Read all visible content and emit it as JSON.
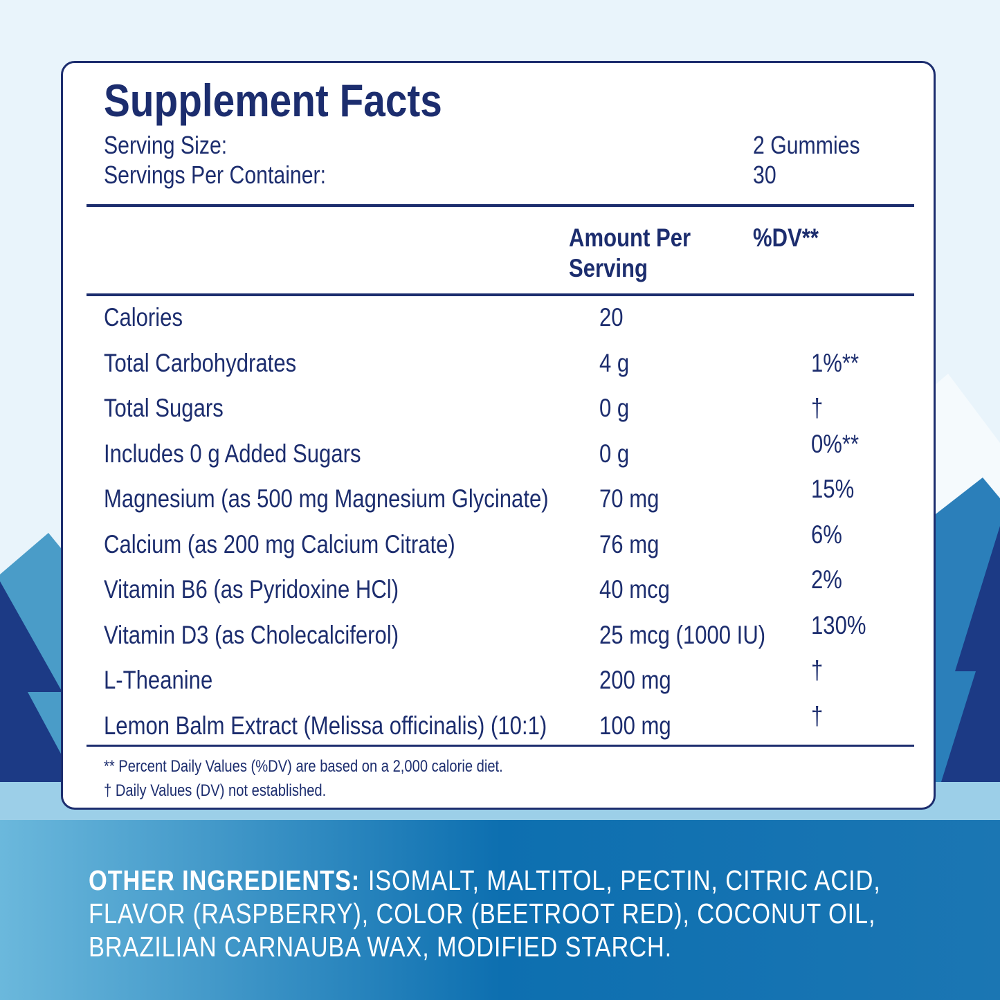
{
  "header": {
    "title": "Supplement Facts",
    "serving": [
      [
        "Serving Size:",
        "2 Gummies"
      ],
      [
        "Servings Per Container:",
        "30"
      ]
    ]
  },
  "table": {
    "columns": [
      "Amount Per Serving",
      "%DV**"
    ],
    "rows": [
      [
        "Calories",
        "20"
      ],
      [
        "Total Carbohydrates",
        "4 g",
        "1%**"
      ],
      [
        "Total Sugars",
        "0 g",
        "†"
      ],
      [
        "Includes 0 g Added Sugars",
        "0 g",
        "0%**"
      ],
      [
        "Magnesium (as 500 mg Magnesium Glycinate)",
        "70 mg",
        "15%"
      ],
      [
        "Calcium (as 200 mg Calcium Citrate)",
        "76 mg",
        "6%"
      ],
      [
        "Vitamin B6 (as Pyridoxine HCl)",
        "40 mcg",
        "2%"
      ],
      [
        "Vitamin D3 (as Cholecalciferol)",
        "25 mcg (1000 IU)",
        "130%"
      ],
      [
        "L-Theanine",
        "200 mg",
        "†"
      ],
      [
        "Lemon Balm Extract (Melissa officinalis) (10:1)",
        "100 mg",
        "†"
      ]
    ]
  },
  "footnotes": [
    "** Percent Daily Values (%DV) are based on a 2,000 calorie diet.",
    "† Daily Values (DV) not established."
  ],
  "ingredients": {
    "label": "OTHER INGREDIENTS:",
    "text": "ISOMALT, MALTITOL, PECTIN, CITRIC ACID, FLAVOR (RASPBERRY), COLOR (BEETROOT RED), COCONUT OIL, BRAZILIAN CARNAUBA WAX, MODIFIED STARCH."
  }
}
